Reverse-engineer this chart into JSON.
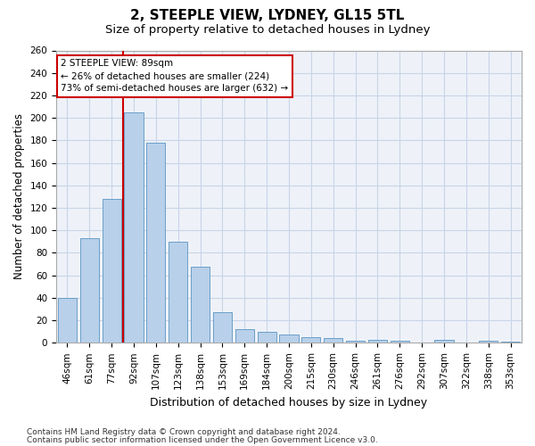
{
  "title1": "2, STEEPLE VIEW, LYDNEY, GL15 5TL",
  "title2": "Size of property relative to detached houses in Lydney",
  "xlabel": "Distribution of detached houses by size in Lydney",
  "ylabel": "Number of detached properties",
  "categories": [
    "46sqm",
    "61sqm",
    "77sqm",
    "92sqm",
    "107sqm",
    "123sqm",
    "138sqm",
    "153sqm",
    "169sqm",
    "184sqm",
    "200sqm",
    "215sqm",
    "230sqm",
    "246sqm",
    "261sqm",
    "276sqm",
    "292sqm",
    "307sqm",
    "322sqm",
    "338sqm",
    "353sqm"
  ],
  "values": [
    40,
    93,
    128,
    205,
    178,
    90,
    68,
    27,
    12,
    10,
    7,
    5,
    4,
    2,
    3,
    2,
    0,
    3,
    0,
    2,
    1
  ],
  "bar_color": "#b8d0ea",
  "bar_edge_color": "#6a9fc8",
  "grid_color": "#c8d4e8",
  "annotation_line1": "2 STEEPLE VIEW: 89sqm",
  "annotation_line2": "← 26% of detached houses are smaller (224)",
  "annotation_line3": "73% of semi-detached houses are larger (632) →",
  "annotation_box_color": "#ffffff",
  "annotation_box_edge_color": "#cc0000",
  "vline_color": "#cc0000",
  "vline_x_index": 2.5,
  "ylim": [
    0,
    260
  ],
  "yticks": [
    0,
    20,
    40,
    60,
    80,
    100,
    120,
    140,
    160,
    180,
    200,
    220,
    240,
    260
  ],
  "footer_line1": "Contains HM Land Registry data © Crown copyright and database right 2024.",
  "footer_line2": "Contains public sector information licensed under the Open Government Licence v3.0.",
  "bg_color": "#eef2f8",
  "title1_fontsize": 11,
  "title2_fontsize": 9.5,
  "xlabel_fontsize": 9,
  "ylabel_fontsize": 8.5,
  "tick_fontsize": 7.5,
  "footer_fontsize": 6.5,
  "ann_fontsize": 7.5
}
